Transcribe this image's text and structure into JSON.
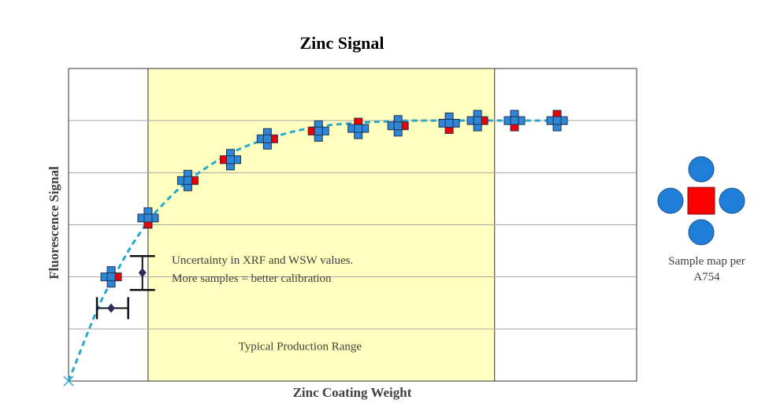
{
  "chart_data": {
    "type": "scatter",
    "title": "Zinc Signal",
    "xlabel": "Zinc Coating Weight",
    "ylabel": "Fluorescence Signal",
    "xlim": [
      0,
      10
    ],
    "ylim": [
      0,
      6
    ],
    "grid": "horizontal",
    "production_range": {
      "x_start": 1.4,
      "x_end": 7.5,
      "label": "Typical Production Range",
      "color": "#ffffc0"
    },
    "curve": {
      "style": "dashed",
      "color": "#26a8d0",
      "points": [
        [
          0.0,
          0.0
        ],
        [
          0.2,
          0.55
        ],
        [
          0.4,
          1.1
        ],
        [
          0.6,
          1.6
        ],
        [
          0.8,
          2.0
        ],
        [
          1.0,
          2.4
        ],
        [
          1.2,
          2.75
        ],
        [
          1.5,
          3.2
        ],
        [
          2.0,
          3.75
        ],
        [
          2.5,
          4.15
        ],
        [
          3.0,
          4.45
        ],
        [
          3.5,
          4.65
        ],
        [
          4.0,
          4.8
        ],
        [
          4.5,
          4.9
        ],
        [
          5.0,
          4.95
        ],
        [
          5.5,
          4.98
        ],
        [
          6.0,
          5.0
        ],
        [
          6.5,
          5.0
        ],
        [
          7.0,
          5.0
        ],
        [
          8.0,
          5.0
        ],
        [
          8.5,
          5.0
        ]
      ]
    },
    "sample_clusters": [
      {
        "x": 0.75,
        "y": 2.0,
        "red_position": "right"
      },
      {
        "x": 1.4,
        "y": 3.13,
        "red_position": "bottom"
      },
      {
        "x": 2.1,
        "y": 3.85,
        "red_position": "right"
      },
      {
        "x": 2.85,
        "y": 4.25,
        "red_position": "left"
      },
      {
        "x": 3.5,
        "y": 4.65,
        "red_position": "right"
      },
      {
        "x": 4.4,
        "y": 4.8,
        "red_position": "left"
      },
      {
        "x": 5.1,
        "y": 4.85,
        "red_position": "top"
      },
      {
        "x": 5.8,
        "y": 4.9,
        "red_position": "right"
      },
      {
        "x": 6.7,
        "y": 4.95,
        "red_position": "bottom"
      },
      {
        "x": 7.2,
        "y": 5.0,
        "red_position": "right"
      },
      {
        "x": 7.85,
        "y": 5.0,
        "red_position": "bottom"
      },
      {
        "x": 8.6,
        "y": 5.0,
        "red_position": "top"
      }
    ],
    "error_bars": [
      {
        "x": 0.75,
        "y": 1.4,
        "direction": "horizontal",
        "low": 0.5,
        "high": 1.05
      },
      {
        "x": 1.3,
        "y": 2.08,
        "direction": "vertical",
        "low": 1.75,
        "high": 2.4
      }
    ],
    "annotation": [
      "Uncertainty in XRF and WSW values.",
      "More samples = better calibration"
    ],
    "sample_map": {
      "label_lines": [
        "Sample map per",
        "A754"
      ],
      "center_color": "#ff0000",
      "satellite_color": "#1f7fd8"
    },
    "colors": {
      "blue_marker": "#2f86d4",
      "red_marker": "#ee0000",
      "diamond": "#2b2b5c",
      "grid": "#a6a6a6"
    }
  }
}
